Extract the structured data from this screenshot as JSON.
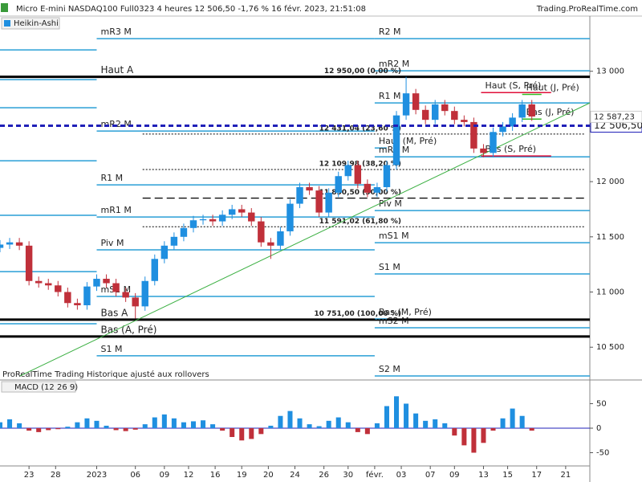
{
  "header": {
    "title": "Micro E-mini NASDAQ100 Full0323 4 heures 12 506,50 -1,76 % 16 févr. 2023, 21:51:08",
    "site": "Trading.ProRealTime.com",
    "note": "ProRealTime Trading  Historique ajusté aux rollovers"
  },
  "chart_data": [
    {
      "type": "candlestick",
      "title": "Heikin-Ashi",
      "x": [
        0,
        2,
        4,
        6,
        8,
        10,
        12,
        14,
        16,
        18,
        20,
        22,
        24,
        26,
        28,
        30,
        32,
        34,
        36,
        38,
        40,
        42,
        44,
        46,
        48,
        50,
        52,
        54,
        56,
        58,
        60,
        62,
        64,
        66,
        68,
        70,
        72,
        74,
        76,
        78,
        80,
        82,
        84,
        86,
        88,
        90,
        92,
        94,
        96,
        98,
        100,
        102,
        104,
        106,
        108,
        110
      ],
      "open": [
        11400,
        11430,
        11450,
        11420,
        11100,
        11080,
        11060,
        11000,
        10900,
        10880,
        11050,
        11120,
        11080,
        11000,
        10950,
        10870,
        11100,
        11300,
        11420,
        11500,
        11580,
        11650,
        11660,
        11640,
        11700,
        11750,
        11720,
        11640,
        11450,
        11420,
        11550,
        11800,
        11950,
        11920,
        11720,
        11900,
        12050,
        12150,
        11980,
        11900,
        11950,
        12150,
        12600,
        12800,
        12650,
        12560,
        12700,
        12640,
        12560,
        12540,
        12300,
        12260,
        12450,
        12500,
        12580,
        12700
      ],
      "high": [
        11470,
        11490,
        11490,
        11460,
        11140,
        11120,
        11100,
        11040,
        10940,
        11090,
        11160,
        11160,
        11120,
        11040,
        10990,
        11140,
        11340,
        11460,
        11540,
        11620,
        11690,
        11700,
        11700,
        11740,
        11790,
        11790,
        11760,
        11680,
        11490,
        11590,
        11840,
        11990,
        11990,
        11960,
        11940,
        12090,
        12190,
        12190,
        12020,
        11990,
        12190,
        12640,
        12950,
        12840,
        12690,
        12740,
        12740,
        12680,
        12600,
        12580,
        12340,
        12490,
        12540,
        12620,
        12740,
        12740
      ],
      "low": [
        11360,
        11390,
        11380,
        11060,
        11040,
        11020,
        10960,
        10860,
        10840,
        10840,
        11010,
        11040,
        10960,
        10910,
        10760,
        10830,
        11060,
        11260,
        11380,
        11460,
        11540,
        11610,
        11600,
        11600,
        11660,
        11680,
        11600,
        11410,
        11300,
        11380,
        11510,
        11760,
        11880,
        11680,
        11680,
        11860,
        12010,
        11940,
        11860,
        11860,
        11910,
        12110,
        12560,
        12610,
        12520,
        12520,
        12600,
        12520,
        12500,
        12260,
        12220,
        12220,
        12410,
        12460,
        12540,
        12550
      ],
      "close": [
        11430,
        11450,
        11420,
        11100,
        11080,
        11060,
        11000,
        10900,
        10880,
        11050,
        11120,
        11080,
        11000,
        10950,
        10870,
        11100,
        11300,
        11420,
        11500,
        11580,
        11650,
        11660,
        11640,
        11700,
        11750,
        11720,
        11640,
        11450,
        11420,
        11550,
        11800,
        11950,
        11920,
        11720,
        11900,
        12050,
        12150,
        11980,
        11900,
        11950,
        12150,
        12600,
        12800,
        12650,
        12560,
        12700,
        12640,
        12560,
        12540,
        12300,
        12260,
        12450,
        12500,
        12580,
        12700,
        12590
      ],
      "up_color": "#1f8fe0",
      "down_color": "#c0303a",
      "xlim": [
        0,
        122
      ],
      "ylim": [
        10225,
        13500
      ],
      "yticks": [
        {
          "value": 13000,
          "label": "13 000"
        },
        {
          "value": 12500,
          "label": "12 500"
        },
        {
          "value": 12000,
          "label": "12 000"
        },
        {
          "value": 11500,
          "label": "11 500"
        },
        {
          "value": 11000,
          "label": "11 000"
        },
        {
          "value": 10500,
          "label": "10 500"
        }
      ],
      "levels": [
        {
          "value": 13193,
          "from": 0,
          "to": 20,
          "color": "#2a9fd6"
        },
        {
          "value": 12924,
          "from": 0,
          "to": 20,
          "color": "#2a9fd6"
        },
        {
          "value": 12669,
          "from": 0,
          "to": 20,
          "color": "#2a9fd6"
        },
        {
          "value": 12189,
          "from": 0,
          "to": 20,
          "color": "#2a9fd6"
        },
        {
          "value": 11695,
          "from": 0,
          "to": 20,
          "color": "#2a9fd6"
        },
        {
          "value": 11185,
          "from": 0,
          "to": 20,
          "color": "#2a9fd6"
        },
        {
          "value": 10713,
          "from": 0,
          "to": 20,
          "color": "#2a9fd6"
        },
        {
          "label": "mR3 M",
          "value": 13295,
          "from": 20,
          "to": 77.5,
          "color": "#2a9fd6"
        },
        {
          "label": "mR2 M",
          "value": 12458,
          "from": 20,
          "to": 77.5,
          "color": "#2a9fd6"
        },
        {
          "label": "R1 M",
          "value": 11971,
          "from": 20,
          "to": 77.5,
          "color": "#2a9fd6"
        },
        {
          "label": "mR1 M",
          "value": 11680,
          "from": 20,
          "to": 77.5,
          "color": "#2a9fd6"
        },
        {
          "label": "Piv M",
          "value": 11382,
          "from": 20,
          "to": 77.5,
          "color": "#2a9fd6"
        },
        {
          "label": "mS1 M",
          "value": 10960,
          "from": 20,
          "to": 77.5,
          "color": "#2a9fd6"
        },
        {
          "label": "S1 M",
          "value": 10422,
          "from": 20,
          "to": 77.5,
          "color": "#2a9fd6"
        },
        {
          "value": 12950,
          "from": 0,
          "to": 20,
          "color": "#000000"
        },
        {
          "label": "Haut A",
          "value": 12950,
          "from": 20,
          "to": 122,
          "color": "#000000"
        },
        {
          "value": 10750,
          "from": 0,
          "to": 20,
          "color": "#000000"
        },
        {
          "label": "Bas A",
          "value": 10750,
          "from": 20,
          "to": 122,
          "color": "#000000"
        },
        {
          "value": 10597,
          "from": 0,
          "to": 20,
          "color": "#000000"
        },
        {
          "label": "Bas (A, Pré)",
          "value": 10597,
          "from": 20,
          "to": 122,
          "color": "#000000"
        },
        {
          "label": "R2 M",
          "value": 13295,
          "from": 77.5,
          "to": 122,
          "color": "#2a9fd6"
        },
        {
          "label": "mR2 M",
          "value": 13004,
          "from": 77.5,
          "to": 122,
          "color": "#2a9fd6"
        },
        {
          "label": "R1 M",
          "value": 12713,
          "from": 77.5,
          "to": 122,
          "color": "#2a9fd6"
        },
        {
          "label": "Haut (M, Pré)",
          "value": 12305,
          "from": 77.5,
          "to": 80,
          "color": "#2a9fd6"
        },
        {
          "label": "mR1 M",
          "value": 12225,
          "from": 77.5,
          "to": 122,
          "color": "#2a9fd6"
        },
        {
          "label": "Piv M",
          "value": 11738,
          "from": 77.5,
          "to": 122,
          "color": "#2a9fd6"
        },
        {
          "label": "mS1 M",
          "value": 11447,
          "from": 77.5,
          "to": 122,
          "color": "#2a9fd6"
        },
        {
          "label": "S1 M",
          "value": 11164,
          "from": 77.5,
          "to": 122,
          "color": "#2a9fd6"
        },
        {
          "label": "Bas (M, Pré)",
          "value": 10756,
          "from": 77.5,
          "to": 80,
          "color": "#2a9fd6"
        },
        {
          "label": "mS2 M",
          "value": 10676,
          "from": 77.5,
          "to": 122,
          "color": "#2a9fd6"
        },
        {
          "label": "S2 M",
          "value": 10240,
          "from": 77.5,
          "to": 122,
          "color": "#2a9fd6"
        },
        {
          "label": "Haut (S, Pré)",
          "value": 12807,
          "from": 99.5,
          "to": 114,
          "color": "#e0103a"
        },
        {
          "label": "Bas (S, Pré)",
          "value": 12233,
          "from": 99.5,
          "to": 114,
          "color": "#e0103a"
        },
        {
          "label": "Haut (J, Pré)",
          "value": 12790,
          "from": 108,
          "to": 112,
          "color": "#33bb22"
        },
        {
          "label": "Bas (J, Pré)",
          "value": 12567,
          "from": 108,
          "to": 112,
          "color": "#33bb22"
        }
      ],
      "fib_levels": [
        {
          "value": 12950,
          "label": "12 950,00 (0,00 %)"
        },
        {
          "value": 12431.04,
          "label": "12 431,04 (23,60 %)"
        },
        {
          "value": 12109.98,
          "label": "12 109,98 (38,20 %)"
        },
        {
          "value": 11850.5,
          "label": "11 850,50 (50,00 %)"
        },
        {
          "value": 11591.02,
          "label": "11 591,02 (61,80 %)"
        },
        {
          "value": 10751,
          "label": "10 751,00 (100,00 %)"
        }
      ],
      "fib_range": [
        29.5,
        121
      ],
      "trend_line": {
        "x": [
          4.15,
          122
        ],
        "values": [
          10240,
          12713
        ],
        "color": "#3cb043"
      },
      "last_price": {
        "value": 12506.5,
        "label": "12 506,50",
        "color": "#2020b8"
      },
      "marker_price": {
        "value": 12587.23,
        "label": "12 587,23",
        "color": "#e0103a"
      }
    },
    {
      "type": "bar",
      "title": "MACD (12 26 9)",
      "x": [
        0,
        2,
        4,
        6,
        8,
        10,
        12,
        14,
        16,
        18,
        20,
        22,
        24,
        26,
        28,
        30,
        32,
        34,
        36,
        38,
        40,
        42,
        44,
        46,
        48,
        50,
        52,
        54,
        56,
        58,
        60,
        62,
        64,
        66,
        68,
        70,
        72,
        74,
        76,
        78,
        80,
        82,
        84,
        86,
        88,
        90,
        92,
        94,
        96,
        98,
        100,
        102,
        104,
        106,
        108,
        110
      ],
      "values": [
        12,
        18,
        10,
        -5,
        -8,
        -4,
        -2,
        3,
        12,
        20,
        15,
        5,
        -4,
        -6,
        -3,
        8,
        22,
        28,
        20,
        12,
        14,
        16,
        8,
        -5,
        -18,
        -25,
        -22,
        -12,
        5,
        25,
        35,
        20,
        8,
        4,
        15,
        22,
        12,
        -8,
        -12,
        10,
        45,
        65,
        50,
        30,
        15,
        18,
        10,
        -15,
        -35,
        -50,
        -30,
        -5,
        20,
        40,
        25,
        -5
      ],
      "up_color": "#1f8fe0",
      "down_color": "#c0303a",
      "xlim": [
        0,
        122
      ],
      "ylim": [
        -77,
        95
      ],
      "yticks": [
        50,
        0,
        -50
      ],
      "xticks": [
        {
          "value": 6,
          "label": "23"
        },
        {
          "value": 11.5,
          "label": "28"
        },
        {
          "value": 20,
          "label": "2023"
        },
        {
          "value": 28,
          "label": "06"
        },
        {
          "value": 34,
          "label": "09"
        },
        {
          "value": 39,
          "label": "12"
        },
        {
          "value": 44.5,
          "label": "16"
        },
        {
          "value": 50,
          "label": "19"
        },
        {
          "value": 55.5,
          "label": "20"
        },
        {
          "value": 61,
          "label": "24"
        },
        {
          "value": 67,
          "label": "26"
        },
        {
          "value": 72,
          "label": "30"
        },
        {
          "value": 77.5,
          "label": "févr."
        },
        {
          "value": 83,
          "label": "03"
        },
        {
          "value": 89,
          "label": "07"
        },
        {
          "value": 94,
          "label": "09"
        },
        {
          "value": 100,
          "label": "13"
        },
        {
          "value": 105,
          "label": "15"
        },
        {
          "value": 111,
          "label": "17"
        },
        {
          "value": 117,
          "label": "21"
        }
      ]
    }
  ]
}
